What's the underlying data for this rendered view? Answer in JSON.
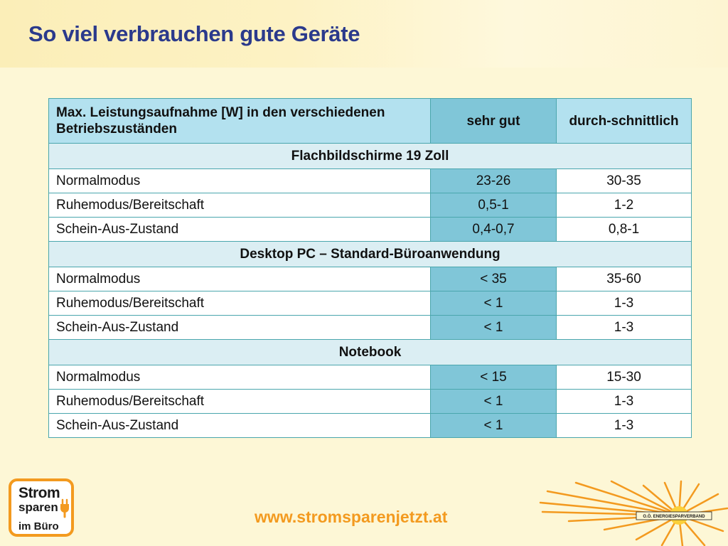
{
  "slide": {
    "title": "So viel verbrauchen gute Geräte"
  },
  "table": {
    "header": {
      "col1": "Max. Leistungsaufnahme [W] in den verschiedenen Betriebszuständen",
      "col2": "sehr gut",
      "col3": "durch-schnittlich"
    },
    "sections": [
      {
        "title": "Flachbildschirme 19 Zoll",
        "rows": [
          {
            "label": "Normalmodus",
            "good": "23-26",
            "avg": "30-35"
          },
          {
            "label": "Ruhemodus/Bereitschaft",
            "good": "0,5-1",
            "avg": "1-2"
          },
          {
            "label": "Schein-Aus-Zustand",
            "good": "0,4-0,7",
            "avg": "0,8-1"
          }
        ]
      },
      {
        "title": "Desktop PC – Standard-Büroanwendung",
        "rows": [
          {
            "label": "Normalmodus",
            "good": "< 35",
            "avg": "35-60"
          },
          {
            "label": "Ruhemodus/Bereitschaft",
            "good": "< 1",
            "avg": "1-3"
          },
          {
            "label": "Schein-Aus-Zustand",
            "good": "< 1",
            "avg": "1-3"
          }
        ]
      },
      {
        "title": "Notebook",
        "rows": [
          {
            "label": "Normalmodus",
            "good": "< 15",
            "avg": "15-30"
          },
          {
            "label": "Ruhemodus/Bereitschaft",
            "good": "< 1",
            "avg": "1-3"
          },
          {
            "label": "Schein-Aus-Zustand",
            "good": "< 1",
            "avg": "1-3"
          }
        ]
      }
    ]
  },
  "footer": {
    "url": "www.stromsparenjetzt.at",
    "logo": {
      "line1": "Strom",
      "line2": "sparen",
      "line3": "im Büro",
      "icon": "plug-icon"
    },
    "org_logo_text": "O.Ö. ENERGIESPARVERBAND"
  },
  "colors": {
    "title": "#2b3a8c",
    "header_bg": "#b3e1ef",
    "good_bg": "#80c6d8",
    "section_bg": "#dbeef3",
    "border": "#4aa6ad",
    "accent_orange": "#f39a1f"
  }
}
